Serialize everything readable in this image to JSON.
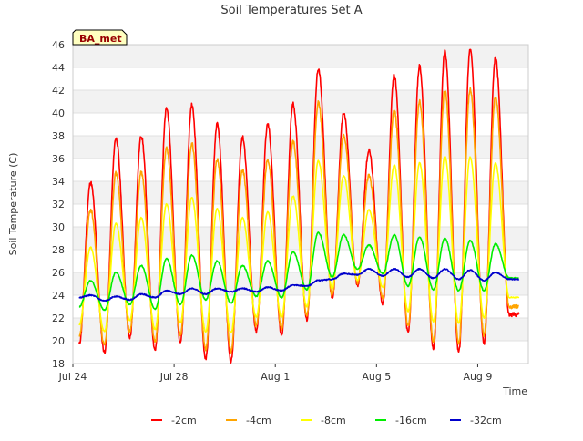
{
  "chart_data": {
    "type": "line",
    "title": "Soil Temperatures Set A",
    "xlabel": "Time",
    "ylabel": "Soil Temperature (C)",
    "ylim": [
      18,
      46
    ],
    "yticks": [
      18,
      20,
      22,
      24,
      26,
      28,
      30,
      32,
      34,
      36,
      38,
      40,
      42,
      44,
      46
    ],
    "xlim": [
      "2024-07-24",
      "2024-08-11"
    ],
    "xticks": [
      {
        "date": "2024-07-24",
        "label": "Jul 24"
      },
      {
        "date": "2024-07-28",
        "label": "Jul 28"
      },
      {
        "date": "2024-08-01",
        "label": "Aug 1"
      },
      {
        "date": "2024-08-05",
        "label": "Aug 5"
      },
      {
        "date": "2024-08-09",
        "label": "Aug 9"
      }
    ],
    "grid": true,
    "band_colors": [
      "#f2f2f2",
      "#ffffff"
    ],
    "legend_position": "bottom",
    "annotation": "BA_met",
    "start_date": "2024-07-24T06:00",
    "end_date": "2024-08-10T15:00",
    "daily_min_day_fraction": 0.25,
    "daily_max_day_fraction": 0.7,
    "series": [
      {
        "name": "-2cm",
        "color": "#ff0000",
        "daily_min": [
          19.7,
          19.0,
          20.3,
          19.2,
          19.9,
          18.4,
          18.2,
          20.8,
          20.5,
          21.9,
          23.8,
          24.9,
          23.3,
          20.7,
          19.3,
          19.0,
          19.8,
          22.3
        ],
        "daily_max": [
          33.9,
          37.8,
          38.0,
          40.4,
          40.7,
          39.0,
          37.9,
          39.0,
          40.8,
          43.9,
          40.0,
          36.7,
          43.3,
          44.1,
          45.4,
          45.6,
          44.8
        ]
      },
      {
        "name": "-4cm",
        "color": "#ffa500",
        "daily_min": [
          20.3,
          19.6,
          20.8,
          19.9,
          20.5,
          19.3,
          19.1,
          21.3,
          21.1,
          22.3,
          24.0,
          25.1,
          23.8,
          21.3,
          20.0,
          19.8,
          20.5,
          23.0
        ],
        "daily_max": [
          31.5,
          34.7,
          34.8,
          36.9,
          37.3,
          35.9,
          35.0,
          35.9,
          37.5,
          40.9,
          38.0,
          34.5,
          40.2,
          41.0,
          42.0,
          42.1,
          41.4
        ]
      },
      {
        "name": "-8cm",
        "color": "#ffff00",
        "daily_min": [
          21.4,
          20.8,
          21.8,
          21.0,
          21.6,
          20.8,
          20.7,
          22.1,
          22.1,
          23.0,
          24.6,
          25.3,
          24.7,
          22.6,
          21.7,
          21.5,
          22.0,
          23.8
        ],
        "daily_max": [
          28.2,
          30.3,
          30.8,
          32.0,
          32.6,
          31.6,
          30.8,
          31.3,
          32.7,
          35.8,
          34.5,
          31.5,
          35.4,
          35.6,
          36.2,
          36.1,
          35.6
        ]
      },
      {
        "name": "-16cm",
        "color": "#00ee00",
        "daily_min": [
          23.0,
          22.7,
          23.2,
          22.8,
          23.2,
          23.6,
          23.3,
          23.9,
          23.8,
          24.5,
          25.6,
          26.3,
          25.9,
          24.8,
          24.5,
          24.4,
          24.4,
          25.5
        ],
        "daily_max": [
          25.3,
          26.0,
          26.6,
          27.2,
          27.5,
          27.0,
          26.6,
          27.0,
          27.8,
          29.5,
          29.3,
          28.4,
          29.3,
          29.1,
          29.0,
          28.8,
          28.5
        ]
      },
      {
        "name": "-32cm",
        "color": "#0000cc",
        "daily_min": [
          23.8,
          23.5,
          23.6,
          23.8,
          24.1,
          24.1,
          24.3,
          24.3,
          24.4,
          24.8,
          25.4,
          25.8,
          25.7,
          25.6,
          25.5,
          25.4,
          25.3,
          25.4
        ],
        "daily_max": [
          24.0,
          23.9,
          24.1,
          24.4,
          24.6,
          24.6,
          24.6,
          24.7,
          24.9,
          25.3,
          25.9,
          26.3,
          26.3,
          26.3,
          26.3,
          26.2,
          26.0
        ]
      }
    ]
  }
}
